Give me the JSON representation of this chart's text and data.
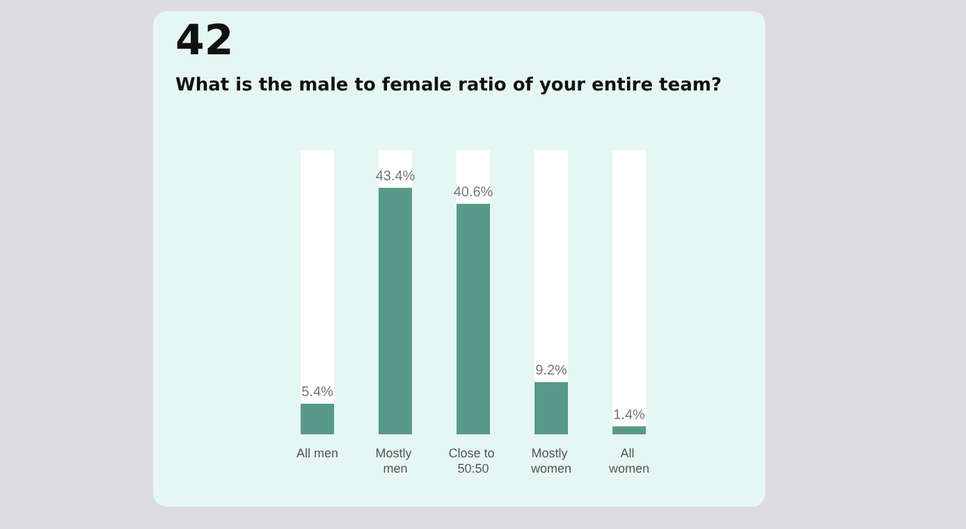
{
  "chart_data": {
    "type": "bar",
    "title": "What is the male to female ratio of your entire team?",
    "annotations": [
      "42"
    ],
    "categories": [
      "All men",
      "Mostly men",
      "Close to 50:50",
      "Mostly women",
      "All women"
    ],
    "values": [
      5.4,
      43.4,
      40.6,
      9.2,
      1.4
    ],
    "color": "#58998a",
    "value_labels": [
      "5.4%",
      "43.4%",
      "40.6%",
      "9.2%",
      "1.4%"
    ]
  }
}
